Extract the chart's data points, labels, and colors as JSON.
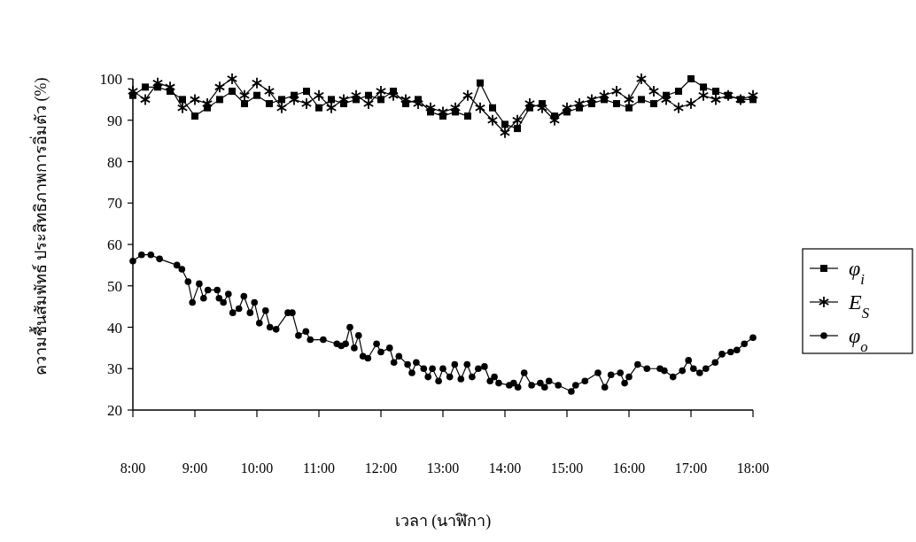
{
  "chart_data": {
    "type": "line",
    "xlabel": "เวลา (นาฬิกา)",
    "ylabel": "ความชื้นสัมพัทธ์ ประสิทธิภาพการอิ่มตัว (%)",
    "xlim": [
      8,
      18
    ],
    "xticks": [
      {
        "value": 8,
        "label": "8:00"
      },
      {
        "value": 9,
        "label": "9:00"
      },
      {
        "value": 10,
        "label": "10:00"
      },
      {
        "value": 11,
        "label": "11:00"
      },
      {
        "value": 12,
        "label": "12:00"
      },
      {
        "value": 13,
        "label": "13:00"
      },
      {
        "value": 14,
        "label": "14:00"
      },
      {
        "value": 15,
        "label": "15:00"
      },
      {
        "value": 16,
        "label": "16:00"
      },
      {
        "value": 17,
        "label": "17:00"
      },
      {
        "value": 18,
        "label": "18:00"
      }
    ],
    "ylim": [
      20,
      100
    ],
    "yticks": [
      20,
      30,
      40,
      50,
      60,
      70,
      80,
      90,
      100
    ],
    "grid": false,
    "legend": "right",
    "series": [
      {
        "name": "φ$_{i}$",
        "color": "#000000",
        "marker": "square",
        "x": [
          8.0,
          8.2,
          8.4,
          8.6,
          8.8,
          9.0,
          9.2,
          9.4,
          9.6,
          9.8,
          10.0,
          10.2,
          10.4,
          10.6,
          10.8,
          11.0,
          11.2,
          11.4,
          11.6,
          11.8,
          12.0,
          12.2,
          12.4,
          12.6,
          12.8,
          13.0,
          13.2,
          13.4,
          13.6,
          13.8,
          14.0,
          14.2,
          14.4,
          14.6,
          14.8,
          15.0,
          15.2,
          15.4,
          15.6,
          15.8,
          16.0,
          16.2,
          16.4,
          16.6,
          16.8,
          17.0,
          17.2,
          17.4,
          17.6,
          17.8,
          18.0
        ],
        "values": [
          96,
          98,
          98,
          97,
          95,
          91,
          93,
          95,
          97,
          94,
          96,
          94,
          95,
          96,
          97,
          93,
          95,
          94,
          95,
          96,
          95,
          97,
          94,
          95,
          92,
          91,
          92,
          91,
          99,
          93,
          89,
          88,
          93,
          94,
          91,
          92,
          93,
          94,
          95,
          94,
          93,
          95,
          94,
          96,
          97,
          100,
          98,
          97,
          96,
          95,
          95
        ]
      },
      {
        "name": "E$_{S}$",
        "color": "#000000",
        "marker": "cross",
        "x": [
          8.0,
          8.2,
          8.4,
          8.6,
          8.8,
          9.0,
          9.2,
          9.4,
          9.6,
          9.8,
          10.0,
          10.2,
          10.4,
          10.6,
          10.8,
          11.0,
          11.2,
          11.4,
          11.6,
          11.8,
          12.0,
          12.2,
          12.4,
          12.6,
          12.8,
          13.0,
          13.2,
          13.4,
          13.6,
          13.8,
          14.0,
          14.2,
          14.4,
          14.6,
          14.8,
          15.0,
          15.2,
          15.4,
          15.6,
          15.8,
          16.0,
          16.2,
          16.4,
          16.6,
          16.8,
          17.0,
          17.2,
          17.4,
          17.6,
          17.8,
          18.0
        ],
        "values": [
          97,
          95,
          99,
          98,
          93,
          95,
          94,
          98,
          100,
          96,
          99,
          97,
          93,
          95,
          94,
          96,
          93,
          95,
          96,
          94,
          97,
          96,
          95,
          94,
          93,
          92,
          93,
          96,
          93,
          90,
          87,
          90,
          94,
          93,
          90,
          93,
          94,
          95,
          96,
          97,
          95,
          100,
          97,
          95,
          93,
          94,
          96,
          95,
          96,
          95,
          96
        ]
      },
      {
        "name": "φ$_{o}$",
        "color": "#000000",
        "marker": "circle",
        "x": [
          8.0,
          8.14,
          8.29,
          8.43,
          8.71,
          8.79,
          8.89,
          8.96,
          9.07,
          9.14,
          9.21,
          9.36,
          9.39,
          9.46,
          9.54,
          9.61,
          9.71,
          9.79,
          9.89,
          9.96,
          10.04,
          10.14,
          10.21,
          10.31,
          10.5,
          10.57,
          10.67,
          10.79,
          10.86,
          11.07,
          11.29,
          11.36,
          11.43,
          11.5,
          11.57,
          11.64,
          11.71,
          11.79,
          11.93,
          12.0,
          12.14,
          12.21,
          12.29,
          12.43,
          12.5,
          12.57,
          12.69,
          12.76,
          12.83,
          12.93,
          13.0,
          13.11,
          13.19,
          13.29,
          13.39,
          13.47,
          13.57,
          13.67,
          13.76,
          13.83,
          13.9,
          14.07,
          14.14,
          14.21,
          14.31,
          14.43,
          14.57,
          14.64,
          14.71,
          14.86,
          15.07,
          15.14,
          15.29,
          15.5,
          15.61,
          15.71,
          15.86,
          15.93,
          16.0,
          16.14,
          16.29,
          16.5,
          16.57,
          16.71,
          16.86,
          16.96,
          17.04,
          17.14,
          17.24,
          17.39,
          17.5,
          17.64,
          17.74,
          17.86,
          18.0
        ],
        "values": [
          56,
          57.5,
          57.5,
          56.5,
          55,
          54,
          51,
          46,
          50.5,
          47,
          49,
          49,
          47,
          46,
          48,
          43.5,
          44.5,
          47.5,
          43.5,
          46,
          41,
          44,
          40,
          39.5,
          43.5,
          43.5,
          38,
          39,
          37,
          37,
          36,
          35.5,
          36,
          40,
          35,
          38,
          33,
          32.5,
          36,
          34,
          35,
          31.5,
          33,
          31,
          29,
          31.5,
          30,
          28,
          30,
          27,
          30,
          28,
          31,
          27.5,
          31,
          28,
          30,
          30.5,
          27,
          28,
          26.5,
          26,
          26.5,
          25.5,
          29,
          26,
          26.5,
          25.5,
          27,
          26,
          24.5,
          26,
          27,
          29,
          25.5,
          28.5,
          29,
          26.5,
          28,
          31,
          30,
          30,
          29.5,
          28,
          29.5,
          32,
          30,
          29,
          30,
          31.5,
          33.5,
          34,
          34.5,
          36,
          37.5
        ]
      }
    ]
  }
}
